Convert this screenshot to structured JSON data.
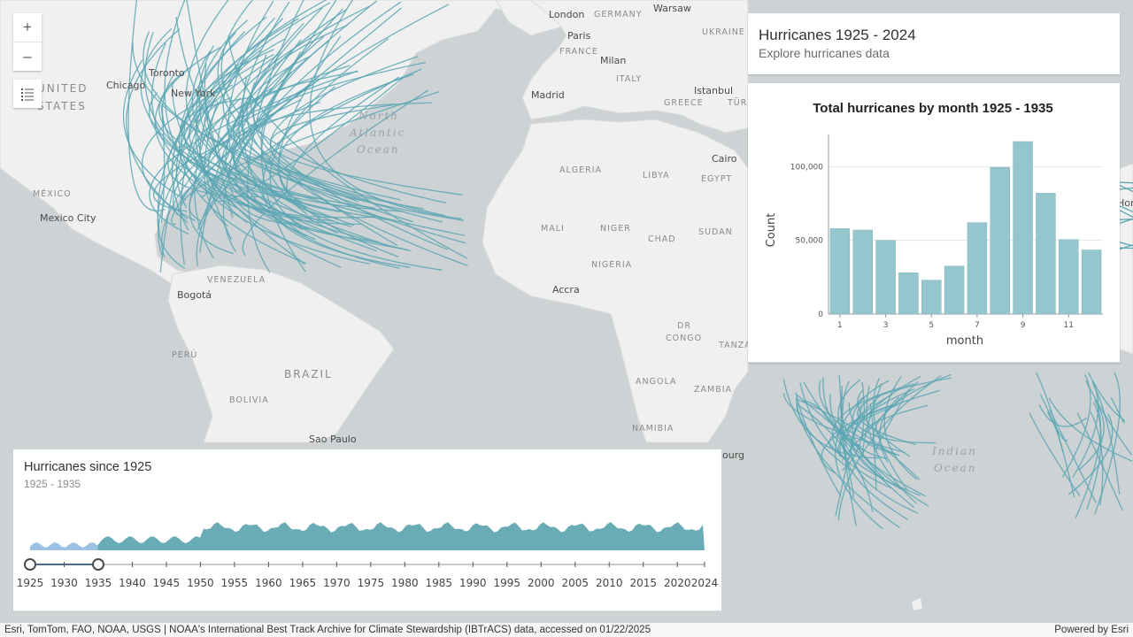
{
  "map": {
    "cities": [
      "London",
      "Warsaw",
      "Paris",
      "Milan",
      "Madrid",
      "Istanbul",
      "Cairo",
      "Chicago",
      "Toronto",
      "New York",
      "Mexico City",
      "Bogotá",
      "Accra",
      "Sao Paulo"
    ],
    "countries": [
      "GERMANY",
      "UKRAINE",
      "FRANCE",
      "ITALY",
      "GREECE",
      "TÜRK",
      "ALGERIA",
      "LIBYA",
      "EGYPT",
      "MALI",
      "NIGER",
      "CHAD",
      "SUDAN",
      "NIGERIA",
      "MÉXICO",
      "VENEZUELA",
      "PERÚ",
      "BOLIVIA",
      "ANGOLA",
      "ZAMBIA",
      "NAMIBIA",
      "DR",
      "CONGO",
      "TANZA"
    ],
    "big_labels": [
      "UNITED",
      "STATES",
      "BRAZIL"
    ],
    "oceans": [
      "North",
      "Atlantic",
      "Ocean",
      "Indian",
      "Ocean"
    ],
    "partial_labels": [
      "ourg",
      "Hor"
    ],
    "track_color": "#5aa6b3"
  },
  "controls": {
    "zoom_in_symbol": "+",
    "zoom_out_symbol": "–"
  },
  "header": {
    "title": "Hurricanes 1925 - 2024",
    "subtitle": "Explore hurricanes data"
  },
  "chart_data": {
    "type": "bar",
    "title": "Total hurricanes by month 1925 - 1935",
    "xlabel": "month",
    "ylabel": "Count",
    "categories": [
      1,
      2,
      3,
      4,
      5,
      6,
      7,
      8,
      9,
      10,
      11,
      12
    ],
    "values": [
      58000,
      57000,
      50000,
      28000,
      23000,
      32500,
      62000,
      99500,
      117000,
      82000,
      50500,
      43500
    ],
    "x_tick_labels": [
      "1",
      "3",
      "5",
      "7",
      "9",
      "11"
    ],
    "y_tick_labels": [
      "0",
      "50,000",
      "100,000"
    ],
    "ylim": [
      0,
      117000
    ],
    "grid": true,
    "bar_color": "#96c6cd"
  },
  "time_slider": {
    "title": "Hurricanes since 1925",
    "range_label": "1925 - 1935",
    "start_year": 1925,
    "end_year": 2024,
    "selected_start": 1925,
    "selected_end": 1935,
    "tick_labels": [
      "1925",
      "1930",
      "1935",
      "1940",
      "1945",
      "1950",
      "1955",
      "1960",
      "1965",
      "1970",
      "1975",
      "1980",
      "1985",
      "1990",
      "1995",
      "2000",
      "2005",
      "2010",
      "2015",
      "2020",
      "2024"
    ],
    "histogram_color": "#6aacb5",
    "selected_color": "#9bc1e3"
  },
  "attribution": {
    "sources": "Esri, TomTom, FAO, NOAA, USGS | NOAA's International Best Track Archive for Climate Stewardship (IBTrACS) data, accessed on 01/22/2025",
    "powered_by": "Powered by Esri"
  }
}
